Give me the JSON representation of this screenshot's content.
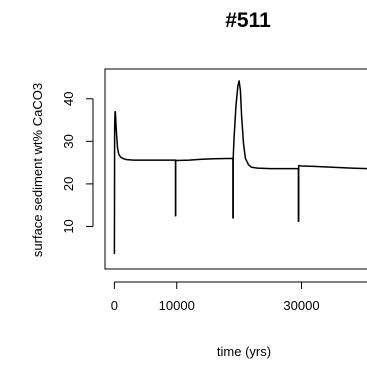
{
  "chart_data": {
    "type": "line",
    "title": "#511",
    "xlabel": "time (yrs)",
    "ylabel": "surface sediment wt% CaCO3",
    "xlim": [
      -1500,
      40500
    ],
    "ylim": [
      0,
      47
    ],
    "x_ticks": [
      0,
      10000,
      30000
    ],
    "x_tick_labels": [
      "0",
      "10000",
      "30000"
    ],
    "y_ticks": [
      10,
      20,
      30,
      40
    ],
    "y_tick_labels": [
      "10",
      "20",
      "30",
      "40"
    ],
    "grid": false,
    "series": [
      {
        "color": "#000000",
        "x": [
          0,
          20,
          40,
          60,
          100,
          150,
          200,
          300,
          400,
          500,
          700,
          1000,
          1500,
          2000,
          3000,
          5000,
          7000,
          9800,
          9800,
          9830,
          9830,
          10000,
          12000,
          14000,
          16000,
          19000,
          19000,
          19050,
          19050,
          19200,
          19500,
          19800,
          20000,
          20200,
          20400,
          20700,
          21000,
          21500,
          22000,
          23000,
          25000,
          27000,
          29500,
          29500,
          29550,
          29550,
          30000,
          32000,
          35000,
          38000,
          40500
        ],
        "y": [
          3.5,
          14,
          30,
          34,
          36.7,
          37,
          36,
          33,
          30.5,
          28.5,
          27,
          26.3,
          25.9,
          25.7,
          25.6,
          25.6,
          25.6,
          25.6,
          12.5,
          12.5,
          25.6,
          25.5,
          25.6,
          25.8,
          25.9,
          26,
          12,
          12,
          26.1,
          31,
          38.5,
          43,
          44.2,
          42,
          36,
          29.5,
          26,
          24.5,
          23.9,
          23.7,
          23.6,
          23.6,
          23.6,
          11.2,
          11.2,
          24.3,
          24.2,
          24.1,
          23.9,
          23.7,
          23.6
        ]
      }
    ]
  }
}
